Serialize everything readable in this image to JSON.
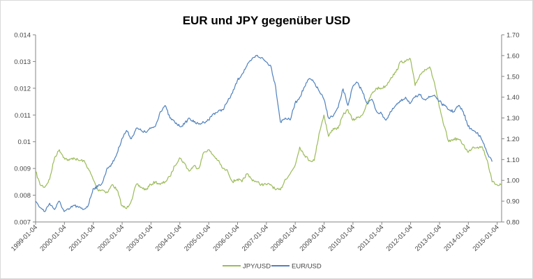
{
  "chart_data": {
    "type": "line",
    "title": "EUR und JPY gegenüber USD",
    "xlabel": "",
    "ylabel_left": "",
    "ylabel_right": "",
    "x_tick_labels": [
      "1999-01-04",
      "2000-01-04",
      "2001-01-04",
      "2002-01-04",
      "2003-01-04",
      "2004-01-04",
      "2005-01-04",
      "2006-01-04",
      "2007-01-04",
      "2008-01-04",
      "2009-01-04",
      "2010-01-04",
      "2011-01-04",
      "2012-01-04",
      "2013-01-04",
      "2014-01-04",
      "2015-01-04"
    ],
    "x_range": [
      "1999-01-04",
      "2015-03-01"
    ],
    "y_left": {
      "range": [
        0.007,
        0.014
      ],
      "ticks": [
        "0.007",
        "0.008",
        "0.009",
        "0.01",
        "0.011",
        "0.012",
        "0.013",
        "0.014"
      ]
    },
    "y_right": {
      "range": [
        0.8,
        1.7
      ],
      "ticks": [
        "0.80",
        "0.90",
        "1.00",
        "1.10",
        "1.20",
        "1.30",
        "1.40",
        "1.50",
        "1.60",
        "1.70"
      ]
    },
    "grid": false,
    "legend_position": "bottom",
    "series": [
      {
        "name": "JPY/USD",
        "axis": "left",
        "color": "#9bbb59",
        "x": [
          "1999-01-04",
          "1999-03-01",
          "1999-05-01",
          "1999-07-01",
          "1999-09-01",
          "1999-11-01",
          "2000-01-01",
          "2000-03-01",
          "2000-05-01",
          "2000-07-01",
          "2000-09-01",
          "2000-11-01",
          "2001-01-01",
          "2001-03-01",
          "2001-05-01",
          "2001-07-01",
          "2001-09-01",
          "2001-11-01",
          "2002-01-01",
          "2002-03-01",
          "2002-05-01",
          "2002-07-01",
          "2002-09-01",
          "2002-11-01",
          "2003-01-01",
          "2003-03-01",
          "2003-05-01",
          "2003-07-01",
          "2003-09-01",
          "2003-11-01",
          "2004-01-01",
          "2004-03-01",
          "2004-05-01",
          "2004-07-01",
          "2004-09-01",
          "2004-11-01",
          "2005-01-01",
          "2005-03-01",
          "2005-05-01",
          "2005-07-01",
          "2005-09-01",
          "2005-11-01",
          "2006-01-01",
          "2006-03-01",
          "2006-05-01",
          "2006-07-01",
          "2006-09-01",
          "2006-11-01",
          "2007-01-01",
          "2007-03-01",
          "2007-05-01",
          "2007-07-01",
          "2007-09-01",
          "2007-11-01",
          "2008-01-01",
          "2008-03-01",
          "2008-05-01",
          "2008-07-01",
          "2008-09-01",
          "2008-11-01",
          "2009-01-01",
          "2009-03-01",
          "2009-05-01",
          "2009-07-01",
          "2009-09-01",
          "2009-11-01",
          "2010-01-01",
          "2010-03-01",
          "2010-05-01",
          "2010-07-01",
          "2010-09-01",
          "2010-11-01",
          "2011-01-01",
          "2011-03-01",
          "2011-05-01",
          "2011-07-01",
          "2011-09-01",
          "2011-11-01",
          "2012-01-01",
          "2012-03-01",
          "2012-05-01",
          "2012-07-01",
          "2012-09-01",
          "2012-11-01",
          "2013-01-01",
          "2013-03-01",
          "2013-05-01",
          "2013-07-01",
          "2013-09-01",
          "2013-11-01",
          "2014-01-01",
          "2014-03-01",
          "2014-05-01",
          "2014-07-01",
          "2014-09-01",
          "2014-11-01",
          "2015-01-01",
          "2015-03-01"
        ],
        "values": [
          0.0089,
          0.0084,
          0.0083,
          0.0086,
          0.0094,
          0.0097,
          0.0094,
          0.0093,
          0.0094,
          0.0093,
          0.0093,
          0.009,
          0.0086,
          0.0082,
          0.0082,
          0.0081,
          0.0084,
          0.0082,
          0.0076,
          0.0075,
          0.0078,
          0.0084,
          0.0083,
          0.0082,
          0.0084,
          0.0085,
          0.0084,
          0.0085,
          0.0087,
          0.0091,
          0.0094,
          0.0092,
          0.0089,
          0.0091,
          0.009,
          0.0096,
          0.0097,
          0.0095,
          0.0093,
          0.009,
          0.0089,
          0.0085,
          0.0086,
          0.0085,
          0.0088,
          0.0086,
          0.0085,
          0.0084,
          0.0084,
          0.0084,
          0.0082,
          0.0082,
          0.0086,
          0.0088,
          0.0091,
          0.0098,
          0.0095,
          0.0093,
          0.0093,
          0.0103,
          0.011,
          0.0102,
          0.0105,
          0.0105,
          0.011,
          0.0112,
          0.0108,
          0.0109,
          0.011,
          0.0114,
          0.0118,
          0.012,
          0.012,
          0.0121,
          0.0124,
          0.0126,
          0.013,
          0.013,
          0.0131,
          0.0121,
          0.0125,
          0.0127,
          0.0128,
          0.0122,
          0.0113,
          0.0106,
          0.01,
          0.0101,
          0.0101,
          0.0099,
          0.0096,
          0.0098,
          0.0098,
          0.0098,
          0.0093,
          0.0085,
          0.0084,
          0.0084
        ]
      },
      {
        "name": "EUR/USD",
        "axis": "right",
        "color": "#4f81bd",
        "x": [
          "1999-01-04",
          "1999-03-01",
          "1999-05-01",
          "1999-07-01",
          "1999-09-01",
          "1999-11-01",
          "2000-01-01",
          "2000-03-01",
          "2000-05-01",
          "2000-07-01",
          "2000-09-01",
          "2000-11-01",
          "2001-01-01",
          "2001-03-01",
          "2001-05-01",
          "2001-07-01",
          "2001-09-01",
          "2001-11-01",
          "2002-01-01",
          "2002-03-01",
          "2002-05-01",
          "2002-07-01",
          "2002-09-01",
          "2002-11-01",
          "2003-01-01",
          "2003-03-01",
          "2003-05-01",
          "2003-07-01",
          "2003-09-01",
          "2003-11-01",
          "2004-01-01",
          "2004-03-01",
          "2004-05-01",
          "2004-07-01",
          "2004-09-01",
          "2004-11-01",
          "2005-01-01",
          "2005-03-01",
          "2005-05-01",
          "2005-07-01",
          "2005-09-01",
          "2005-11-01",
          "2006-01-01",
          "2006-03-01",
          "2006-05-01",
          "2006-07-01",
          "2006-09-01",
          "2006-11-01",
          "2007-01-01",
          "2007-03-01",
          "2007-05-01",
          "2007-07-01",
          "2007-09-01",
          "2007-11-01",
          "2008-01-01",
          "2008-03-01",
          "2008-05-01",
          "2008-07-01",
          "2008-09-01",
          "2008-11-01",
          "2009-01-01",
          "2009-03-01",
          "2009-05-01",
          "2009-07-01",
          "2009-09-01",
          "2009-11-01",
          "2010-01-01",
          "2010-03-01",
          "2010-05-01",
          "2010-07-01",
          "2010-09-01",
          "2010-11-01",
          "2011-01-01",
          "2011-03-01",
          "2011-05-01",
          "2011-07-01",
          "2011-09-01",
          "2011-11-01",
          "2012-01-01",
          "2012-03-01",
          "2012-05-01",
          "2012-07-01",
          "2012-09-01",
          "2012-11-01",
          "2013-01-01",
          "2013-03-01",
          "2013-05-01",
          "2013-07-01",
          "2013-09-01",
          "2013-11-01",
          "2014-01-01",
          "2014-03-01",
          "2014-05-01",
          "2014-07-01",
          "2014-09-01",
          "2014-11-01"
        ],
        "values": [
          0.9,
          0.87,
          0.85,
          0.89,
          0.86,
          0.9,
          0.85,
          0.86,
          0.88,
          0.87,
          0.86,
          0.88,
          0.96,
          0.97,
          0.99,
          1.06,
          1.08,
          1.13,
          1.2,
          1.24,
          1.2,
          1.25,
          1.24,
          1.23,
          1.25,
          1.26,
          1.33,
          1.36,
          1.3,
          1.28,
          1.26,
          1.27,
          1.3,
          1.28,
          1.27,
          1.28,
          1.29,
          1.32,
          1.33,
          1.34,
          1.38,
          1.42,
          1.48,
          1.51,
          1.55,
          1.58,
          1.6,
          1.59,
          1.57,
          1.55,
          1.45,
          1.28,
          1.3,
          1.29,
          1.37,
          1.4,
          1.45,
          1.49,
          1.47,
          1.43,
          1.39,
          1.3,
          1.31,
          1.35,
          1.44,
          1.36,
          1.45,
          1.47,
          1.43,
          1.37,
          1.39,
          1.33,
          1.32,
          1.29,
          1.33,
          1.36,
          1.38,
          1.4,
          1.37,
          1.4,
          1.41,
          1.39,
          1.4,
          1.41,
          1.38,
          1.36,
          1.34,
          1.33,
          1.36,
          1.33,
          1.26,
          1.24,
          1.23,
          1.19,
          1.13,
          1.09
        ]
      }
    ]
  }
}
